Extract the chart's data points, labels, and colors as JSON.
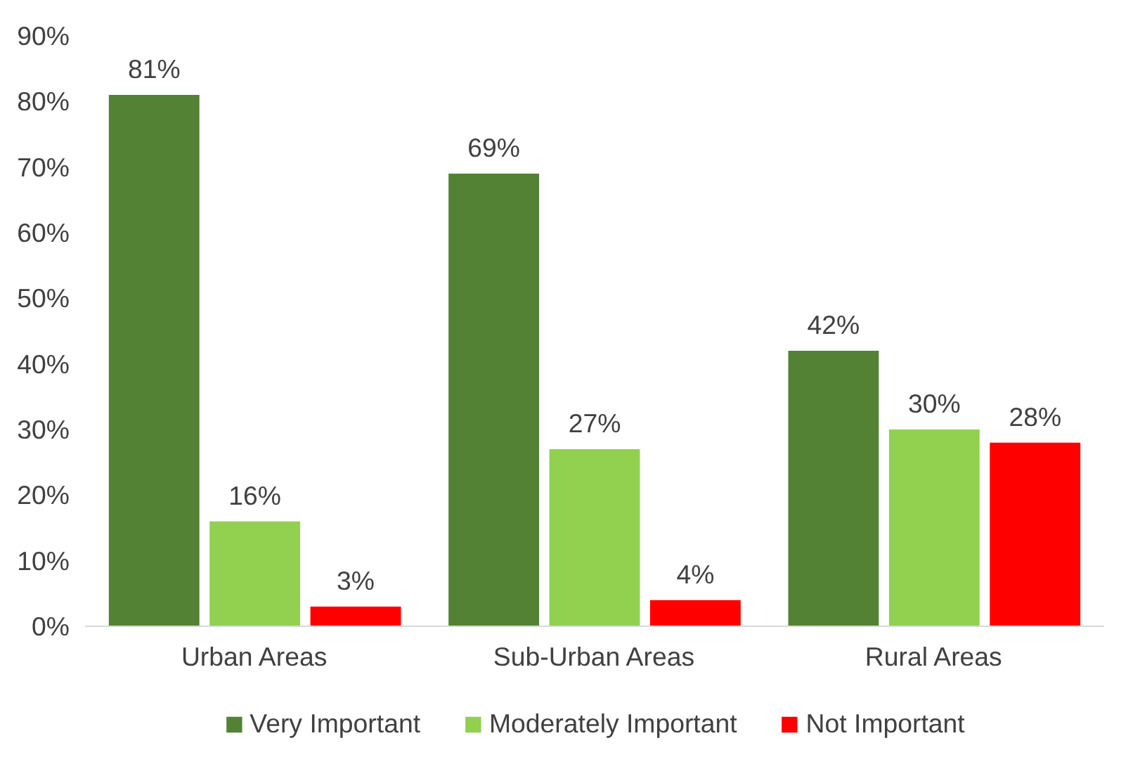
{
  "chart_data": {
    "type": "bar",
    "categories": [
      "Urban Areas",
      "Sub-Urban Areas",
      "Rural Areas"
    ],
    "series": [
      {
        "name": "Very Important",
        "color": "#548235",
        "values": [
          81,
          69,
          42
        ],
        "value_labels": [
          "81%",
          "69%",
          "42%"
        ]
      },
      {
        "name": "Moderately Important",
        "color": "#92d050",
        "values": [
          16,
          27,
          30
        ],
        "value_labels": [
          "16%",
          "27%",
          "30%"
        ]
      },
      {
        "name": "Not Important",
        "color": "#ff0000",
        "values": [
          3,
          4,
          28
        ],
        "value_labels": [
          "3%",
          "4%",
          "28%"
        ]
      }
    ],
    "ylim": [
      0,
      90
    ],
    "yticks": [
      {
        "value": 0,
        "label": "0%"
      },
      {
        "value": 10,
        "label": "10%"
      },
      {
        "value": 20,
        "label": "20%"
      },
      {
        "value": 30,
        "label": "30%"
      },
      {
        "value": 40,
        "label": "40%"
      },
      {
        "value": 50,
        "label": "50%"
      },
      {
        "value": 60,
        "label": "60%"
      },
      {
        "value": 70,
        "label": "70%"
      },
      {
        "value": 80,
        "label": "80%"
      },
      {
        "value": 90,
        "label": "90%"
      }
    ],
    "grid": false,
    "legend": "bottom"
  }
}
